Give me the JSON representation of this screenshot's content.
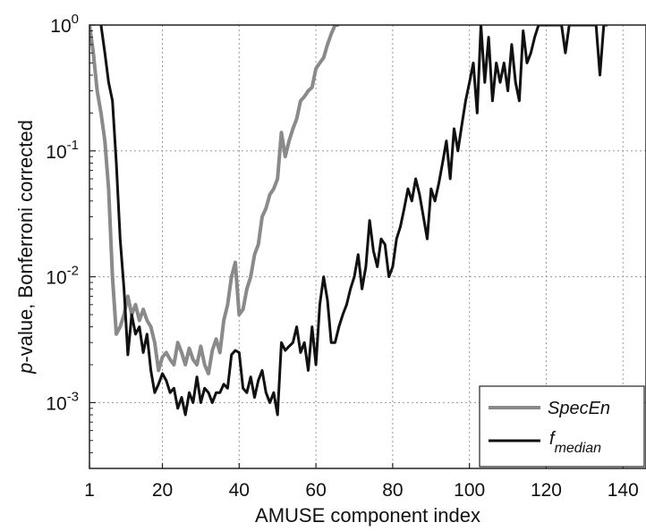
{
  "chart_data": {
    "type": "line",
    "title": "",
    "xlabel": "AMUSE component index",
    "ylabel": {
      "italic": "p",
      "rest": "-value, Bonferroni corrected"
    },
    "x_ticks": [
      1,
      20,
      40,
      60,
      80,
      100,
      120,
      140
    ],
    "y_ticks": [
      {
        "value": 0.001,
        "base": "10",
        "exp": "-3"
      },
      {
        "value": 0.01,
        "base": "10",
        "exp": "-2"
      },
      {
        "value": 0.1,
        "base": "10",
        "exp": "-1"
      },
      {
        "value": 1,
        "base": "10",
        "exp": "0"
      }
    ],
    "xlim": [
      1,
      146
    ],
    "ylim": [
      0.0003,
      1
    ],
    "y_scale": "log",
    "grid": true,
    "legend_position": "bottom-right",
    "series": [
      {
        "name": "SpecEn",
        "color": "#8a8a8a",
        "points": [
          [
            1,
            1.0
          ],
          [
            2,
            0.6
          ],
          [
            3,
            0.3
          ],
          [
            4,
            0.2
          ],
          [
            5,
            0.12
          ],
          [
            6,
            0.05
          ],
          [
            7,
            0.01
          ],
          [
            8,
            0.0035
          ],
          [
            9,
            0.004
          ],
          [
            10,
            0.005
          ],
          [
            11,
            0.007
          ],
          [
            12,
            0.005
          ],
          [
            13,
            0.006
          ],
          [
            14,
            0.0045
          ],
          [
            15,
            0.0055
          ],
          [
            16,
            0.0045
          ],
          [
            17,
            0.004
          ],
          [
            18,
            0.003
          ],
          [
            19,
            0.0018
          ],
          [
            20,
            0.0023
          ],
          [
            21,
            0.0025
          ],
          [
            22,
            0.0022
          ],
          [
            23,
            0.002
          ],
          [
            24,
            0.003
          ],
          [
            25,
            0.0025
          ],
          [
            26,
            0.002
          ],
          [
            27,
            0.0027
          ],
          [
            28,
            0.0022
          ],
          [
            29,
            0.002
          ],
          [
            30,
            0.0028
          ],
          [
            31,
            0.002
          ],
          [
            32,
            0.0017
          ],
          [
            33,
            0.0026
          ],
          [
            34,
            0.0032
          ],
          [
            35,
            0.0025
          ],
          [
            36,
            0.0045
          ],
          [
            37,
            0.006
          ],
          [
            38,
            0.01
          ],
          [
            39,
            0.013
          ],
          [
            40,
            0.005
          ],
          [
            41,
            0.0055
          ],
          [
            42,
            0.008
          ],
          [
            43,
            0.01
          ],
          [
            44,
            0.015
          ],
          [
            45,
            0.018
          ],
          [
            46,
            0.03
          ],
          [
            47,
            0.035
          ],
          [
            48,
            0.045
          ],
          [
            49,
            0.05
          ],
          [
            50,
            0.06
          ],
          [
            51,
            0.14
          ],
          [
            52,
            0.09
          ],
          [
            53,
            0.12
          ],
          [
            54,
            0.15
          ],
          [
            55,
            0.18
          ],
          [
            56,
            0.25
          ],
          [
            57,
            0.27
          ],
          [
            58,
            0.3
          ],
          [
            59,
            0.32
          ],
          [
            60,
            0.45
          ],
          [
            61,
            0.5
          ],
          [
            62,
            0.55
          ],
          [
            63,
            0.7
          ],
          [
            64,
            0.85
          ],
          [
            65,
            1.0
          ],
          [
            66,
            1.0
          ]
        ]
      },
      {
        "name": "f_median",
        "label_main": "f",
        "label_sub": "median",
        "color": "#111111",
        "points": [
          [
            4,
            1.0
          ],
          [
            5,
            0.6
          ],
          [
            6,
            0.35
          ],
          [
            7,
            0.25
          ],
          [
            8,
            0.08
          ],
          [
            9,
            0.02
          ],
          [
            10,
            0.008
          ],
          [
            11,
            0.0024
          ],
          [
            12,
            0.005
          ],
          [
            13,
            0.0035
          ],
          [
            14,
            0.004
          ],
          [
            15,
            0.0025
          ],
          [
            16,
            0.0035
          ],
          [
            17,
            0.0018
          ],
          [
            18,
            0.0012
          ],
          [
            19,
            0.0014
          ],
          [
            20,
            0.0017
          ],
          [
            21,
            0.0015
          ],
          [
            22,
            0.0012
          ],
          [
            23,
            0.0013
          ],
          [
            24,
            0.0009
          ],
          [
            25,
            0.0011
          ],
          [
            26,
            0.0008
          ],
          [
            27,
            0.0012
          ],
          [
            28,
            0.001
          ],
          [
            29,
            0.0016
          ],
          [
            30,
            0.001
          ],
          [
            31,
            0.0013
          ],
          [
            32,
            0.0012
          ],
          [
            33,
            0.001
          ],
          [
            34,
            0.0012
          ],
          [
            35,
            0.0012
          ],
          [
            36,
            0.0014
          ],
          [
            37,
            0.0013
          ],
          [
            38,
            0.0024
          ],
          [
            39,
            0.0026
          ],
          [
            40,
            0.0025
          ],
          [
            41,
            0.0013
          ],
          [
            42,
            0.0012
          ],
          [
            43,
            0.0016
          ],
          [
            44,
            0.0011
          ],
          [
            45,
            0.0015
          ],
          [
            46,
            0.0018
          ],
          [
            47,
            0.0012
          ],
          [
            48,
            0.001
          ],
          [
            49,
            0.0012
          ],
          [
            50,
            0.0008
          ],
          [
            51,
            0.003
          ],
          [
            52,
            0.0026
          ],
          [
            53,
            0.0028
          ],
          [
            54,
            0.003
          ],
          [
            55,
            0.004
          ],
          [
            56,
            0.0025
          ],
          [
            57,
            0.003
          ],
          [
            58,
            0.0018
          ],
          [
            59,
            0.004
          ],
          [
            60,
            0.002
          ],
          [
            61,
            0.006
          ],
          [
            62,
            0.01
          ],
          [
            63,
            0.0065
          ],
          [
            64,
            0.003
          ],
          [
            65,
            0.003
          ],
          [
            66,
            0.004
          ],
          [
            67,
            0.005
          ],
          [
            68,
            0.006
          ],
          [
            69,
            0.008
          ],
          [
            70,
            0.01
          ],
          [
            71,
            0.015
          ],
          [
            72,
            0.008
          ],
          [
            73,
            0.012
          ],
          [
            74,
            0.028
          ],
          [
            75,
            0.016
          ],
          [
            76,
            0.012
          ],
          [
            77,
            0.02
          ],
          [
            78,
            0.018
          ],
          [
            79,
            0.01
          ],
          [
            80,
            0.012
          ],
          [
            81,
            0.02
          ],
          [
            82,
            0.025
          ],
          [
            83,
            0.035
          ],
          [
            84,
            0.05
          ],
          [
            85,
            0.04
          ],
          [
            86,
            0.06
          ],
          [
            87,
            0.045
          ],
          [
            88,
            0.03
          ],
          [
            89,
            0.02
          ],
          [
            90,
            0.05
          ],
          [
            91,
            0.04
          ],
          [
            92,
            0.055
          ],
          [
            93,
            0.08
          ],
          [
            94,
            0.12
          ],
          [
            95,
            0.06
          ],
          [
            96,
            0.15
          ],
          [
            97,
            0.1
          ],
          [
            98,
            0.16
          ],
          [
            99,
            0.25
          ],
          [
            100,
            0.35
          ],
          [
            101,
            0.5
          ],
          [
            102,
            0.2
          ],
          [
            103,
            1.0
          ],
          [
            104,
            0.35
          ],
          [
            105,
            0.8
          ],
          [
            106,
            0.25
          ],
          [
            107,
            0.5
          ],
          [
            108,
            0.35
          ],
          [
            109,
            0.5
          ],
          [
            110,
            0.3
          ],
          [
            111,
            0.7
          ],
          [
            112,
            0.35
          ],
          [
            113,
            0.25
          ],
          [
            114,
            0.9
          ],
          [
            115,
            0.5
          ],
          [
            116,
            0.6
          ],
          [
            117,
            0.8
          ],
          [
            118,
            1.0
          ],
          [
            119,
            1.0
          ],
          [
            120,
            1.0
          ],
          [
            121,
            1.0
          ],
          [
            122,
            1.0
          ],
          [
            123,
            1.0
          ],
          [
            124,
            1.0
          ],
          [
            125,
            0.6
          ],
          [
            126,
            1.0
          ],
          [
            127,
            1.0
          ],
          [
            128,
            1.0
          ],
          [
            129,
            1.0
          ],
          [
            130,
            1.0
          ],
          [
            131,
            1.0
          ],
          [
            132,
            1.0
          ],
          [
            133,
            1.0
          ],
          [
            134,
            0.4
          ],
          [
            135,
            1.0
          ],
          [
            136,
            1.0
          ]
        ]
      }
    ]
  }
}
